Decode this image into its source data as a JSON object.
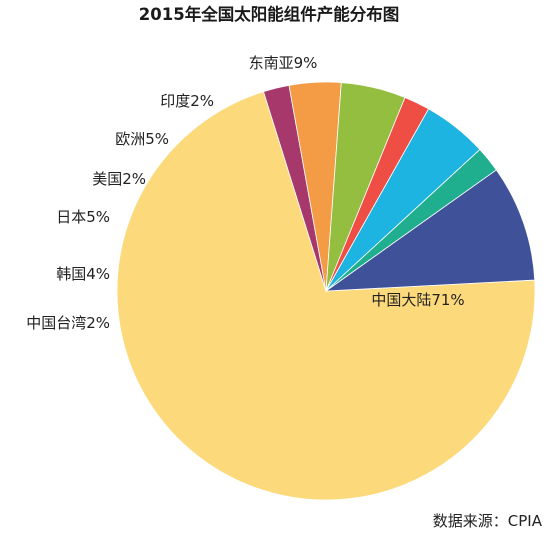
{
  "chart_data": {
    "type": "pie",
    "title": "2015年全国太阳能组件产能分布图",
    "source": "数据来源：CPIA",
    "slices": [
      {
        "label": "中国大陆71%",
        "value": 71,
        "color": "#FCDA7C"
      },
      {
        "label": "中国台湾2%",
        "value": 2,
        "color": "#A6386B"
      },
      {
        "label": "韩国4%",
        "value": 4,
        "color": "#F49B45"
      },
      {
        "label": "日本5%",
        "value": 5,
        "color": "#93BE3F"
      },
      {
        "label": "美国2%",
        "value": 2,
        "color": "#EE4E43"
      },
      {
        "label": "欧洲5%",
        "value": 5,
        "color": "#1DB4E1"
      },
      {
        "label": "印度2%",
        "value": 2,
        "color": "#1FAE8E"
      },
      {
        "label": "东南亚9%",
        "value": 9,
        "color": "#3F5198"
      }
    ]
  }
}
